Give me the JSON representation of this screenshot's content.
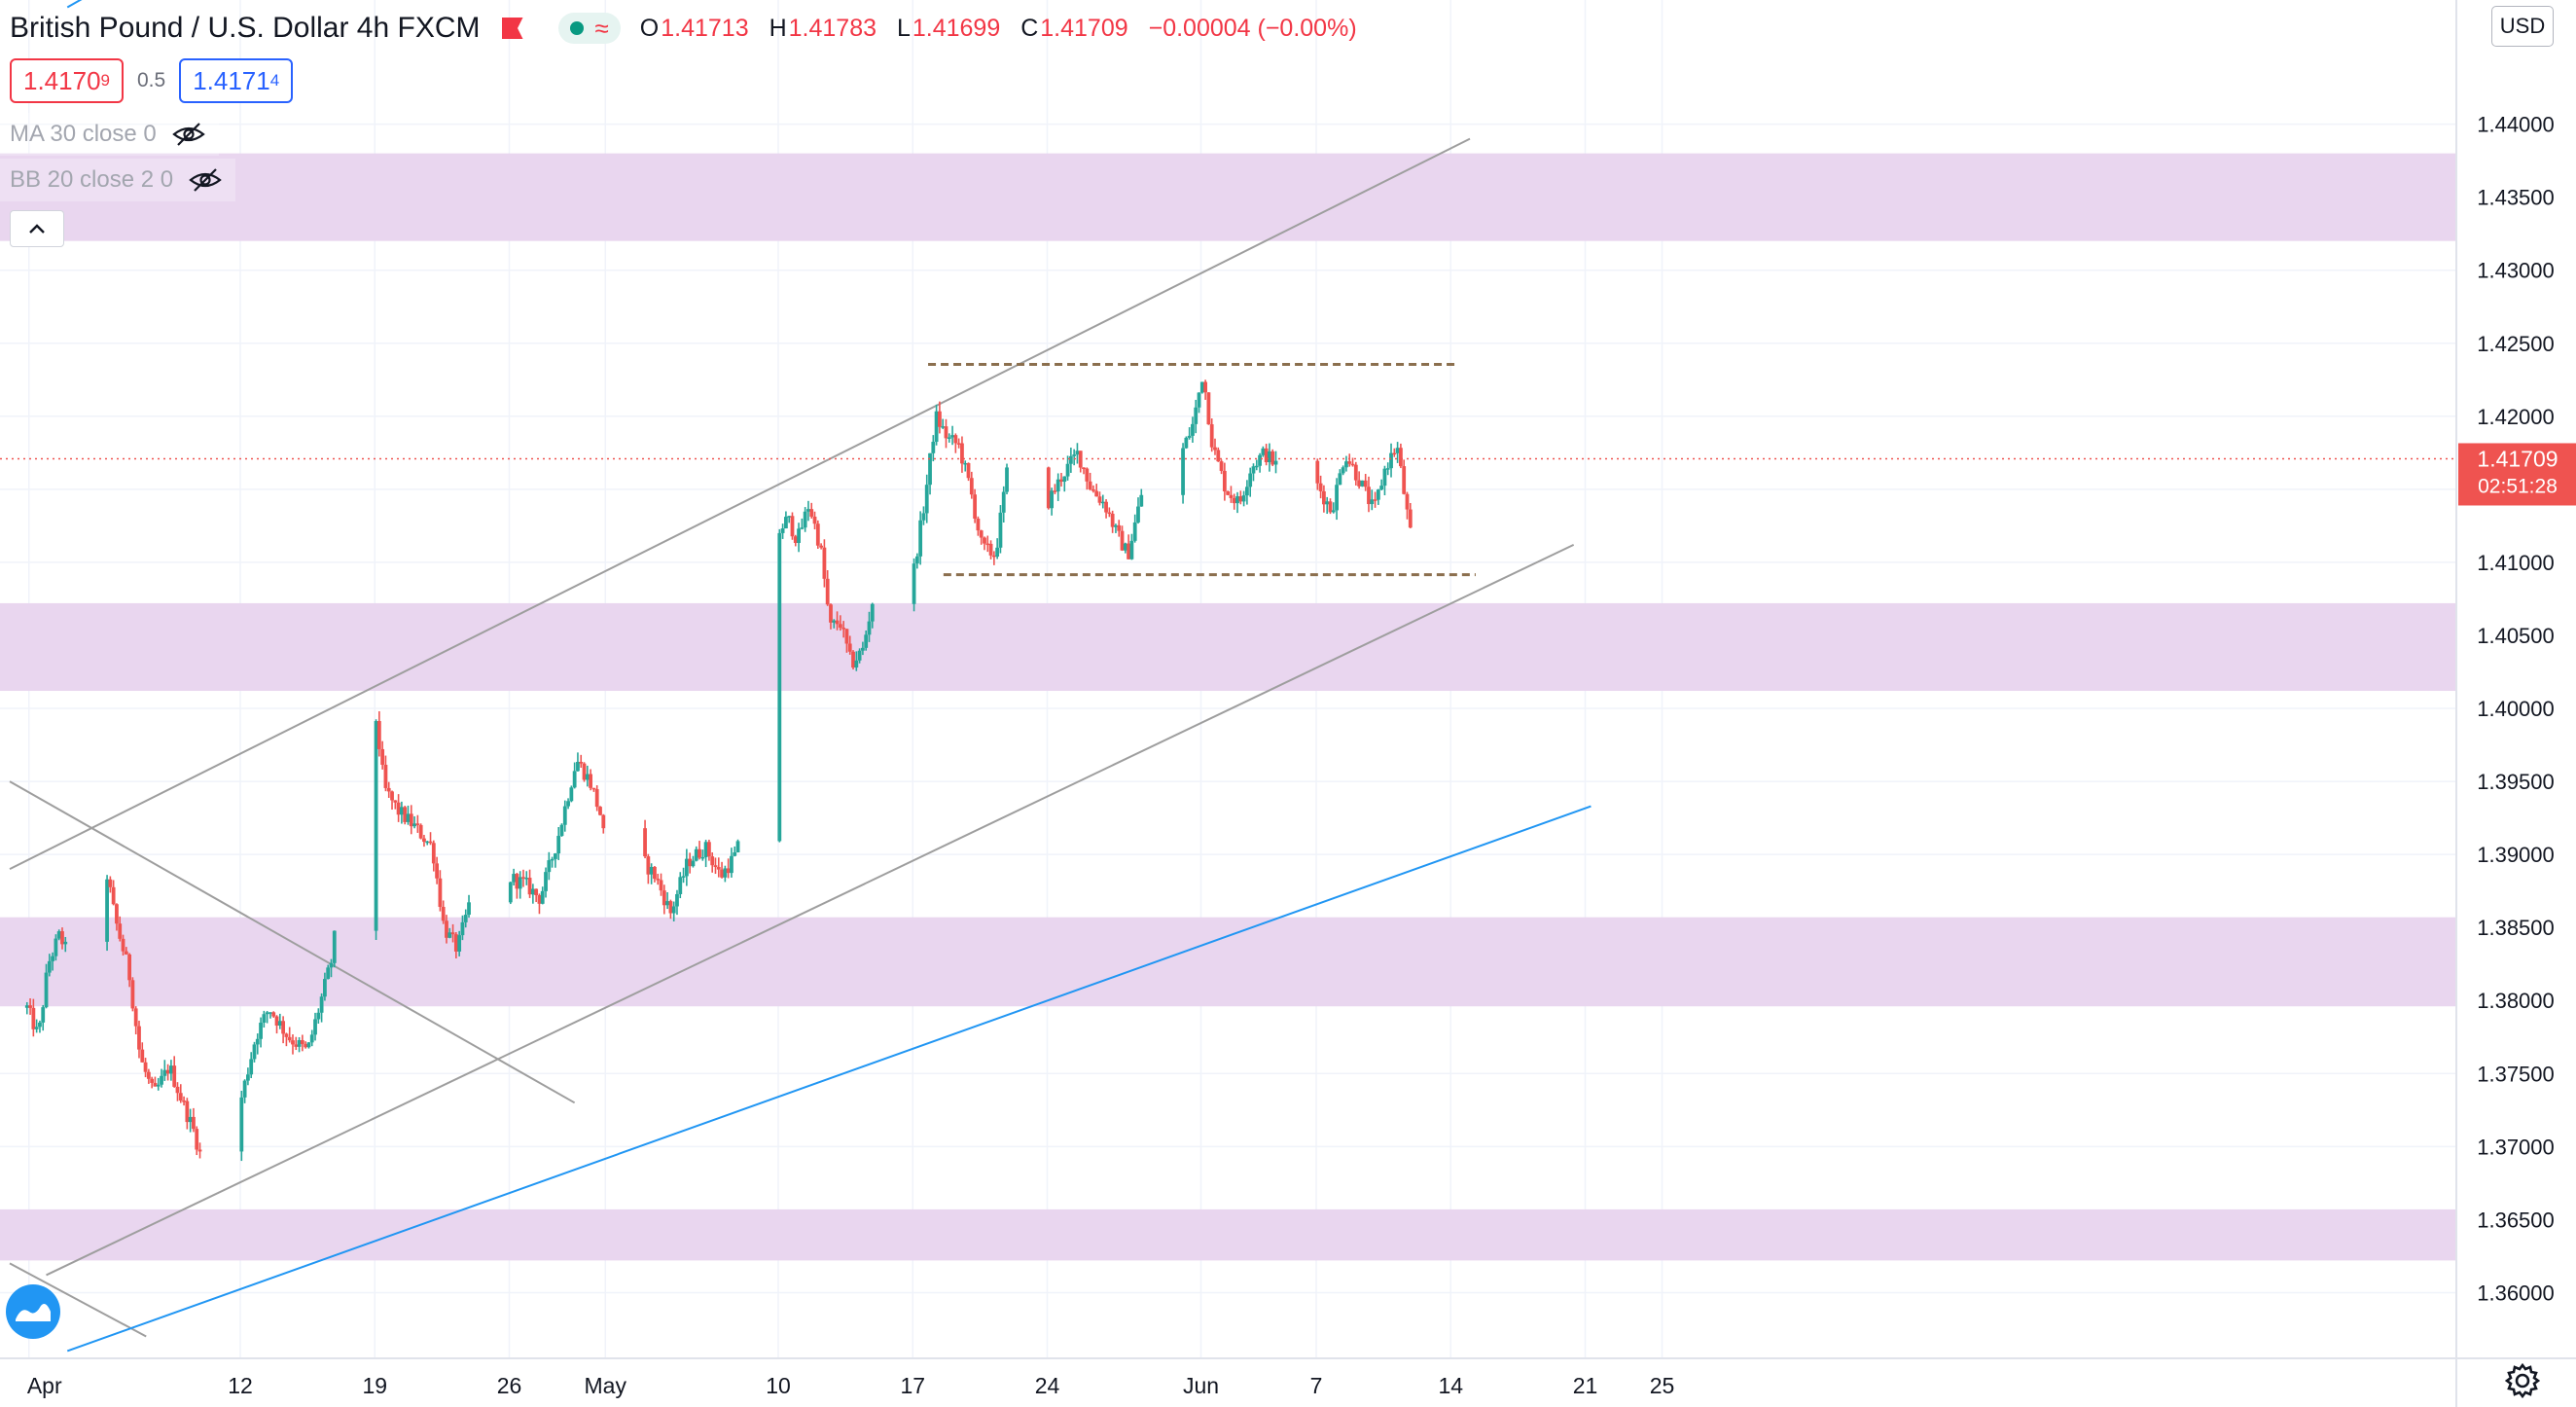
{
  "header": {
    "symbol_title": "British Pound / U.S. Dollar  4h  FXCM",
    "ohlc": {
      "open_label": "O",
      "open": "1.41713",
      "high_label": "H",
      "high": "1.41783",
      "low_label": "L",
      "low": "1.41699",
      "close_label": "C",
      "close": "1.41709",
      "change": "−0.00004 (−0.00%)"
    },
    "wave_glyph": "≈"
  },
  "trade": {
    "sell_main": "1.4170",
    "sell_sup": "9",
    "spread": "0.5",
    "buy_main": "1.4171",
    "buy_sup": "4"
  },
  "indicators": [
    {
      "label": "MA 30 close 0"
    },
    {
      "label": "BB 20 close 2 0"
    }
  ],
  "currency_button": "USD",
  "last_price": {
    "value": "1.41709",
    "countdown": "02:51:28"
  },
  "colors": {
    "up": "#26a69a",
    "down": "#ef5350",
    "zone": "#e8d4ee",
    "trendline": "#9e9e9e",
    "blue_line": "#2196f3",
    "dashed": "#8b6f4e",
    "price_line": "#ef5350"
  },
  "icons": {
    "eye": "eye-crossed-icon",
    "collapse": "chevron-up-icon",
    "logo": "tradingview-logo-icon",
    "settings": "gear-icon"
  },
  "chart_data": {
    "type": "candlestick",
    "timeframe": "4h",
    "ylim": [
      1.3555,
      1.4485
    ],
    "y_ticks": [
      "1.44000",
      "1.43500",
      "1.43000",
      "1.42500",
      "1.42000",
      "1.41500",
      "1.41000",
      "1.40500",
      "1.40000",
      "1.39500",
      "1.39000",
      "1.38500",
      "1.38000",
      "1.37500",
      "1.37000",
      "1.36500",
      "1.36000"
    ],
    "x_ticks": [
      {
        "label": "Apr",
        "day": 1
      },
      {
        "label": "12",
        "day": 12
      },
      {
        "label": "19",
        "day": 19
      },
      {
        "label": "26",
        "day": 26
      },
      {
        "label": "May",
        "day": 31
      },
      {
        "label": "10",
        "day": 40
      },
      {
        "label": "17",
        "day": 47
      },
      {
        "label": "24",
        "day": 54
      },
      {
        "label": "Jun",
        "day": 62
      },
      {
        "label": "7",
        "day": 68
      },
      {
        "label": "14",
        "day": 75
      },
      {
        "label": "21",
        "day": 82
      },
      {
        "label": "25",
        "day": 86
      }
    ],
    "close_path": [
      [
        0.9,
        1.3795
      ],
      [
        1.5,
        1.3775
      ],
      [
        2.0,
        1.3825
      ],
      [
        2.6,
        1.3845
      ],
      [
        3.2,
        1.3825
      ],
      [
        4.0,
        1.386
      ],
      [
        4.4,
        1.391
      ],
      [
        4.8,
        1.3905
      ],
      [
        5.5,
        1.3855
      ],
      [
        6.2,
        1.382
      ],
      [
        6.8,
        1.376
      ],
      [
        7.5,
        1.3735
      ],
      [
        8.3,
        1.3755
      ],
      [
        9.0,
        1.373
      ],
      [
        9.6,
        1.371
      ],
      [
        10.0,
        1.369
      ],
      [
        10.8,
        1.374
      ],
      [
        11.5,
        1.376
      ],
      [
        12.0,
        1.373
      ],
      [
        12.8,
        1.3775
      ],
      [
        13.5,
        1.3795
      ],
      [
        14.5,
        1.3775
      ],
      [
        15.5,
        1.3765
      ],
      [
        16.0,
        1.379
      ],
      [
        16.8,
        1.383
      ],
      [
        17.4,
        1.3905
      ],
      [
        18.0,
        1.3975
      ],
      [
        18.6,
        1.3995
      ],
      [
        19.0,
        1.4
      ],
      [
        19.5,
        1.3945
      ],
      [
        20.2,
        1.393
      ],
      [
        21.0,
        1.392
      ],
      [
        22.0,
        1.3905
      ],
      [
        22.6,
        1.385
      ],
      [
        23.3,
        1.3835
      ],
      [
        24.2,
        1.388
      ],
      [
        25.0,
        1.3895
      ],
      [
        25.8,
        1.3885
      ],
      [
        26.8,
        1.388
      ],
      [
        27.6,
        1.387
      ],
      [
        28.5,
        1.391
      ],
      [
        29.5,
        1.3965
      ],
      [
        30.2,
        1.395
      ],
      [
        30.8,
        1.3925
      ],
      [
        31.5,
        1.3845
      ],
      [
        32.0,
        1.3815
      ],
      [
        32.5,
        1.383
      ],
      [
        33.0,
        1.3895
      ],
      [
        33.6,
        1.3885
      ],
      [
        34.4,
        1.386
      ],
      [
        35.3,
        1.3895
      ],
      [
        36.2,
        1.3905
      ],
      [
        37.0,
        1.3885
      ],
      [
        37.8,
        1.39
      ],
      [
        38.5,
        1.393
      ],
      [
        39.0,
        1.399
      ],
      [
        39.6,
        1.405
      ],
      [
        40.0,
        1.412
      ],
      [
        40.5,
        1.413
      ],
      [
        41.0,
        1.4115
      ],
      [
        41.6,
        1.414
      ],
      [
        42.2,
        1.411
      ],
      [
        42.7,
        1.4055
      ],
      [
        43.2,
        1.406
      ],
      [
        43.8,
        1.403
      ],
      [
        44.4,
        1.404
      ],
      [
        45.0,
        1.408
      ],
      [
        45.6,
        1.4085
      ],
      [
        46.3,
        1.4095
      ],
      [
        47.0,
        1.409
      ],
      [
        47.6,
        1.414
      ],
      [
        48.2,
        1.42
      ],
      [
        48.8,
        1.4185
      ],
      [
        49.4,
        1.418
      ],
      [
        50.0,
        1.415
      ],
      [
        50.6,
        1.411
      ],
      [
        51.3,
        1.4105
      ],
      [
        52.0,
        1.417
      ],
      [
        52.8,
        1.4185
      ],
      [
        53.3,
        1.414
      ],
      [
        54.0,
        1.414
      ],
      [
        54.8,
        1.416
      ],
      [
        55.6,
        1.4175
      ],
      [
        56.3,
        1.415
      ],
      [
        57.0,
        1.414
      ],
      [
        57.6,
        1.412
      ],
      [
        58.2,
        1.4105
      ],
      [
        58.8,
        1.414
      ],
      [
        59.5,
        1.4185
      ],
      [
        60.3,
        1.4195
      ],
      [
        61.0,
        1.4175
      ],
      [
        61.6,
        1.4195
      ],
      [
        62.1,
        1.423
      ],
      [
        62.6,
        1.418
      ],
      [
        63.3,
        1.415
      ],
      [
        64.0,
        1.414
      ],
      [
        64.6,
        1.4165
      ],
      [
        65.3,
        1.4175
      ],
      [
        66.0,
        1.4165
      ],
      [
        66.4,
        1.411
      ],
      [
        66.8,
        1.4095
      ],
      [
        67.4,
        1.4165
      ],
      [
        68.2,
        1.415
      ],
      [
        68.8,
        1.4135
      ],
      [
        69.5,
        1.4175
      ],
      [
        70.3,
        1.4155
      ],
      [
        71.0,
        1.4135
      ],
      [
        71.6,
        1.4165
      ],
      [
        72.2,
        1.418
      ],
      [
        72.6,
        1.4145
      ],
      [
        73.0,
        1.411
      ],
      [
        73.5,
        1.4095
      ],
      [
        74.0,
        1.415
      ],
      [
        74.5,
        1.4171
      ]
    ],
    "zones": [
      [
        1.432,
        1.438
      ],
      [
        1.4012,
        1.4072
      ],
      [
        1.3796,
        1.3857
      ],
      [
        1.3622,
        1.3657
      ]
    ],
    "dashed_levels": [
      {
        "y": 1.42355,
        "x0": 47.8,
        "x1": 75.3
      },
      {
        "y": 1.40915,
        "x0": 48.6,
        "x1": 76.3
      }
    ],
    "channel_upper": [
      [
        0.0,
        1.389
      ],
      [
        76.0,
        1.439
      ]
    ],
    "channel_lower": [
      [
        1.9,
        1.3612
      ],
      [
        81.4,
        1.4112
      ]
    ],
    "descending_line": [
      [
        0.0,
        1.395
      ],
      [
        29.4,
        1.373
      ]
    ],
    "descending_line_2": [
      [
        0.0,
        1.362
      ],
      [
        7.1,
        1.357
      ]
    ],
    "blue_line": [
      [
        3.0,
        1.356
      ],
      [
        82.3,
        1.3933
      ]
    ],
    "blue_line_top": [
      [
        3.0,
        1.448
      ],
      [
        13.0,
        1.4555
      ]
    ],
    "last_price_line": 1.41709
  }
}
